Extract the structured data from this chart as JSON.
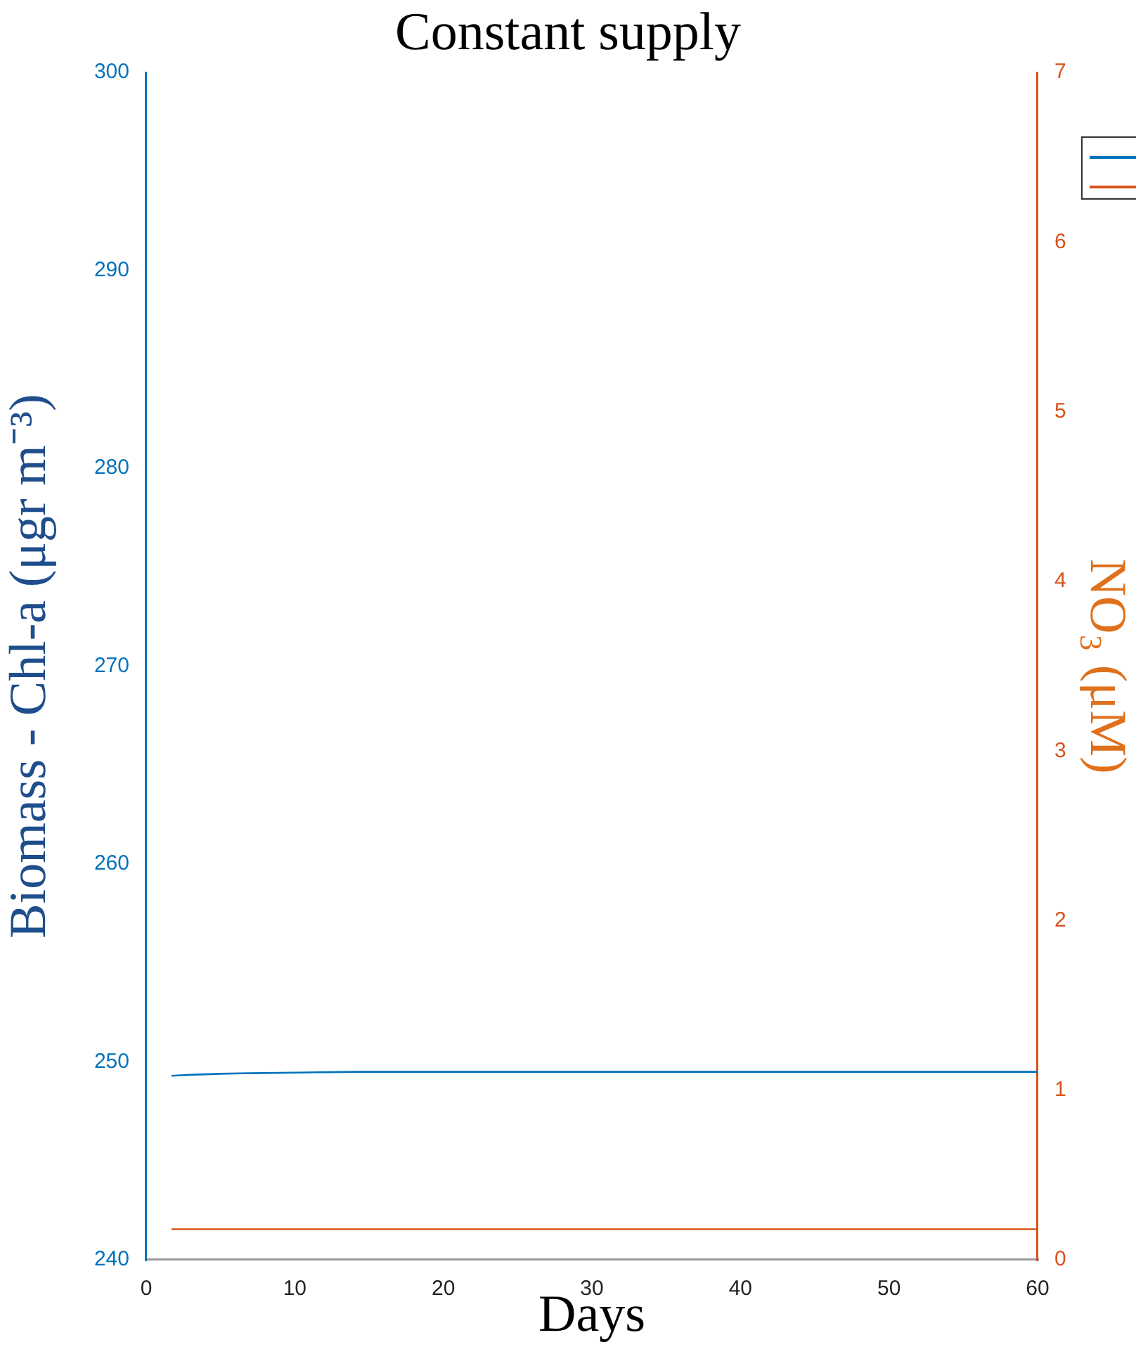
{
  "chart_data": {
    "type": "line",
    "title": "Constant supply",
    "xlabel": "Days",
    "ylabel": "Biomass - Chl-a (μgr m⁻³)",
    "y2label": "NO₃ (μM)",
    "xlim": [
      0,
      60
    ],
    "xticks": [
      0,
      10,
      20,
      30,
      40,
      50,
      60
    ],
    "ylim": [
      240,
      300
    ],
    "yticks": [
      240,
      250,
      260,
      270,
      280,
      290,
      300
    ],
    "y2lim": [
      0,
      7
    ],
    "y2ticks": [
      0,
      1,
      2,
      3,
      4,
      5,
      6,
      7
    ],
    "grid": false,
    "marker": "none",
    "line_style": "solid",
    "series": [
      {
        "color": "#0072bd",
        "x": [
          1.7,
          3,
          5,
          7,
          10,
          15,
          20,
          30,
          40,
          50,
          60
        ],
        "values": [
          249.3,
          249.35,
          249.4,
          249.43,
          249.46,
          249.5,
          249.5,
          249.5,
          249.5,
          249.5,
          249.5
        ]
      },
      {
        "color": "#d95319",
        "axis": "y2",
        "x": [
          1.7,
          60
        ],
        "values": [
          0.18,
          0.18
        ]
      }
    ]
  }
}
